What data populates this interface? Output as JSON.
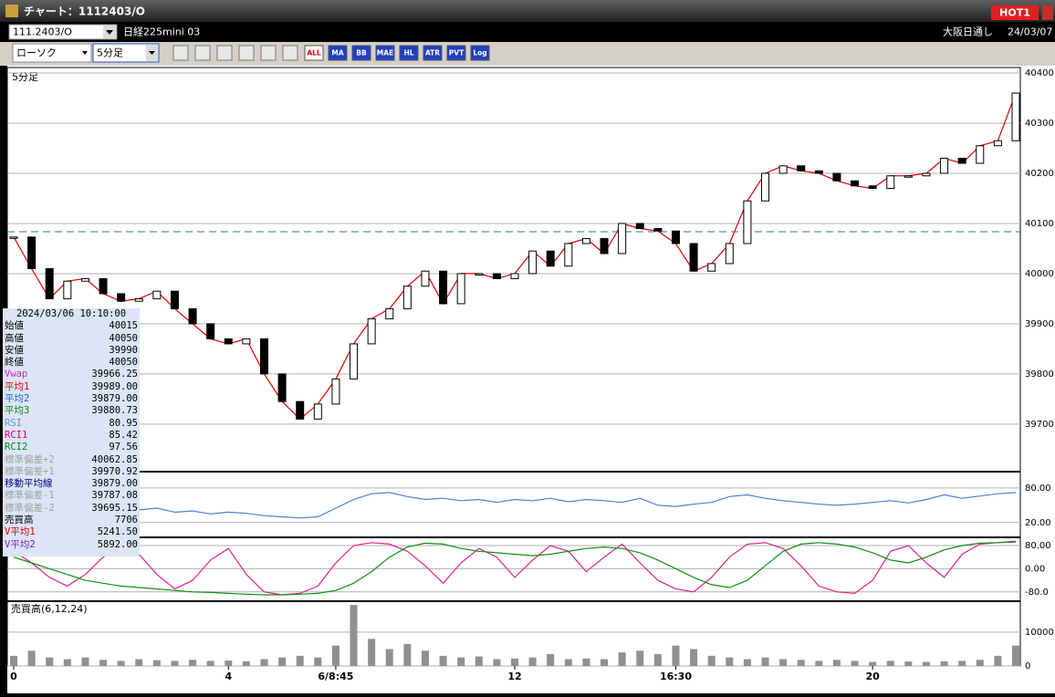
{
  "window": {
    "title": "チャート：1112403/O",
    "badge": "HOT1"
  },
  "header": {
    "code": "111.2403/O",
    "name": "日経225mini 03",
    "session": "大阪日通し",
    "date": "24/03/07"
  },
  "toolbar": {
    "chart_type": "ローソク",
    "interval": "5分足",
    "buttons": [
      "ALL",
      "MA",
      "BB",
      "MAE",
      "HL",
      "ATR",
      "PVT",
      "Log"
    ]
  },
  "info": {
    "datetime": "2024/03/06  10:10:00",
    "rows": [
      {
        "label": "始値",
        "value": "40015",
        "color": "#000000"
      },
      {
        "label": "高値",
        "value": "40050",
        "color": "#000000"
      },
      {
        "label": "安値",
        "value": "39990",
        "color": "#000000"
      },
      {
        "label": "終値",
        "value": "40050",
        "color": "#000000"
      },
      {
        "label": "Vwap",
        "value": "39966.25",
        "color": "#e020c0"
      },
      {
        "label": "平均1",
        "value": "39989.00",
        "color": "#e00000"
      },
      {
        "label": "平均2",
        "value": "39879.00",
        "color": "#2060e0"
      },
      {
        "label": "平均3",
        "value": "39880.73",
        "color": "#108010"
      },
      {
        "label": "RSI",
        "value": "80.95",
        "color": "#7090d0"
      },
      {
        "label": "RCI1",
        "value": "85.42",
        "color": "#e00060"
      },
      {
        "label": "RCI2",
        "value": "97.56",
        "color": "#108010"
      },
      {
        "label": "標準偏差+2",
        "value": "40062.85",
        "color": "#a0a0a0"
      },
      {
        "label": "標準偏差+1",
        "value": "39970.92",
        "color": "#a0a0a0"
      },
      {
        "label": "移動平均線",
        "value": "39879.00",
        "color": "#000080"
      },
      {
        "label": "標準偏差-1",
        "value": "39787.08",
        "color": "#a0a0a0"
      },
      {
        "label": "標準偏差-2",
        "value": "39695.15",
        "color": "#a0a0a0"
      },
      {
        "label": "売買高",
        "value": "7706",
        "color": "#000000"
      },
      {
        "label": "V平均1",
        "value": "5241.50",
        "color": "#e00000"
      },
      {
        "label": "V平均2",
        "value": "5892.00",
        "color": "#8020c0"
      }
    ]
  },
  "chart_data": {
    "type": "candlestick",
    "panel_label": "5分足",
    "categories": [
      "0",
      null,
      null,
      null,
      null,
      null,
      null,
      null,
      null,
      null,
      null,
      null,
      "4",
      null,
      null,
      null,
      null,
      null,
      "6/8:45",
      null,
      null,
      null,
      null,
      null,
      null,
      null,
      null,
      null,
      "12",
      null,
      null,
      null,
      null,
      null,
      null,
      null,
      null,
      "16:30",
      null,
      null,
      null,
      null,
      null,
      null,
      null,
      null,
      null,
      null,
      "20",
      null,
      null,
      null,
      null,
      null,
      null,
      null,
      null
    ],
    "price": {
      "color_up": "#ffffff",
      "color_down": "#000000",
      "line_color": "#e00000",
      "values": [
        40073,
        40010,
        39950,
        39985,
        39990,
        39960,
        39945,
        39950,
        39965,
        39930,
        39900,
        39870,
        39860,
        39870,
        39800,
        39745,
        39710,
        39740,
        39790,
        39860,
        39910,
        39930,
        39975,
        40005,
        39940,
        40000,
        40000,
        39990,
        40000,
        40045,
        40015,
        40060,
        40070,
        40040,
        40100,
        40090,
        40085,
        40060,
        40005,
        40020,
        40060,
        40145,
        40200,
        40215,
        40205,
        40200,
        40185,
        40175,
        40170,
        40195,
        40195,
        40200,
        40230,
        40220,
        40255,
        40265,
        40360
      ],
      "ylim": [
        39607,
        40411
      ],
      "yticks": [
        40400,
        40300,
        40200,
        40100,
        40000,
        39900,
        39800,
        39700
      ]
    },
    "rsi": {
      "color": "#4a80d0",
      "values": [
        55,
        45,
        40,
        42,
        48,
        45,
        40,
        42,
        45,
        38,
        40,
        35,
        38,
        36,
        32,
        30,
        28,
        30,
        45,
        60,
        70,
        72,
        65,
        60,
        62,
        58,
        60,
        55,
        60,
        58,
        62,
        56,
        60,
        58,
        55,
        62,
        50,
        48,
        52,
        55,
        65,
        68,
        62,
        58,
        55,
        52,
        50,
        52,
        55,
        58,
        54,
        60,
        68,
        62,
        66,
        70,
        72
      ],
      "ylim": [
        -4,
        105
      ],
      "yticks": [
        {
          "value": 80,
          "label": "80.00"
        },
        {
          "value": 20,
          "label": "20.00"
        }
      ]
    },
    "rci": {
      "ylim": [
        -109,
        102
      ],
      "yticks": [
        {
          "value": 80,
          "label": "80.00"
        },
        {
          "value": 0,
          "label": "0.00"
        },
        {
          "value": -80,
          "label": "-80.0"
        }
      ],
      "series": [
        {
          "name": "RCI1",
          "color": "#e0208a",
          "values": [
            60,
            20,
            -30,
            -60,
            -20,
            40,
            80,
            50,
            -20,
            -70,
            -40,
            30,
            70,
            -20,
            -80,
            -90,
            -85,
            -60,
            20,
            80,
            90,
            85,
            60,
            10,
            -50,
            20,
            70,
            40,
            -30,
            30,
            80,
            60,
            -10,
            40,
            85,
            20,
            -40,
            -70,
            -80,
            -30,
            40,
            85,
            90,
            70,
            10,
            -60,
            -80,
            -85,
            -40,
            60,
            80,
            20,
            -30,
            50,
            85,
            90,
            95
          ]
        },
        {
          "name": "RCI2",
          "color": "#109010",
          "values": [
            40,
            20,
            0,
            -20,
            -40,
            -50,
            -60,
            -65,
            -70,
            -75,
            -80,
            -82,
            -85,
            -88,
            -90,
            -90,
            -88,
            -85,
            -75,
            -50,
            -10,
            40,
            75,
            88,
            85,
            70,
            60,
            55,
            50,
            45,
            50,
            60,
            70,
            75,
            70,
            55,
            30,
            0,
            -30,
            -55,
            -65,
            -40,
            10,
            60,
            85,
            90,
            85,
            75,
            55,
            30,
            20,
            40,
            65,
            80,
            88,
            90,
            92
          ]
        }
      ]
    },
    "volume": {
      "label": "売買高(6,12,24)",
      "color": "#909090",
      "values": [
        3000,
        4500,
        2500,
        2000,
        2500,
        1800,
        1500,
        2000,
        1700,
        1500,
        1800,
        1500,
        1600,
        1400,
        2000,
        2500,
        3000,
        2500,
        6000,
        18000,
        8000,
        5000,
        6500,
        4500,
        3000,
        2500,
        2800,
        2000,
        2200,
        2500,
        3500,
        2000,
        2200,
        2000,
        4000,
        4500,
        3500,
        6000,
        5000,
        3000,
        2500,
        2000,
        2500,
        2000,
        1800,
        1500,
        1800,
        1500,
        1200,
        1500,
        1300,
        1200,
        1400,
        1500,
        1800,
        3000,
        6000
      ],
      "ylim": [
        0,
        18570
      ],
      "yticks": [
        10000,
        0
      ]
    }
  }
}
